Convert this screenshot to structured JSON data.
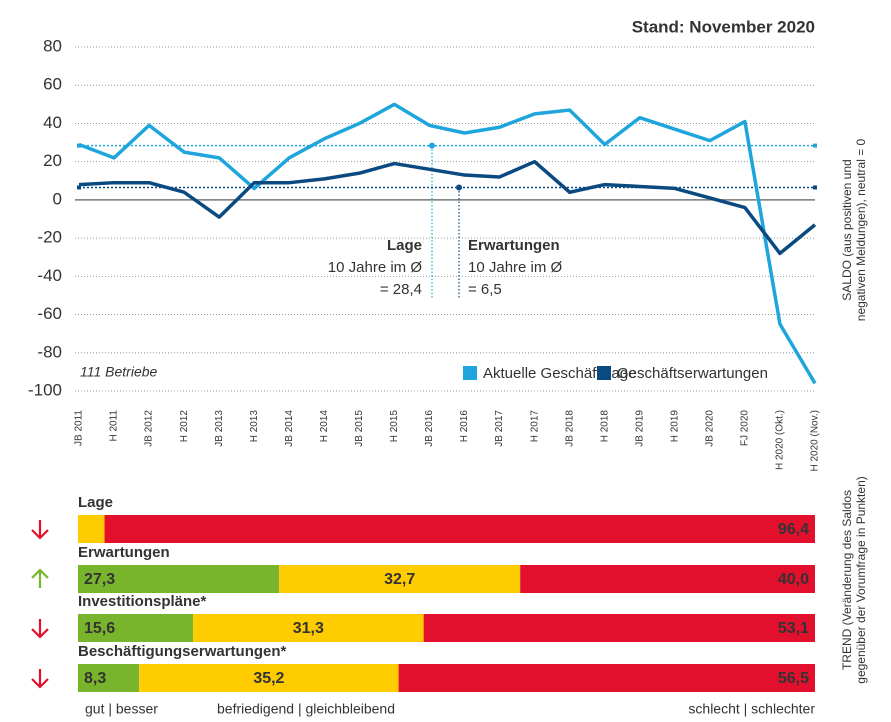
{
  "chart_data": [
    {
      "type": "line",
      "title": "Stand: November 2020",
      "annotation": "111 Betriebe",
      "y_label": [
        "SALDO (aus positiven und",
        "negativen Meldungen), neutral = 0"
      ],
      "categories": [
        "JB 2011",
        "H 2011",
        "JB 2012",
        "H 2012",
        "JB 2013",
        "H 2013",
        "JB 2014",
        "H 2014",
        "JB 2015",
        "H 2015",
        "JB 2016",
        "H 2016",
        "JB 2017",
        "H 2017",
        "JB 2018",
        "H 2018",
        "JB 2019",
        "H 2019",
        "JB 2020",
        "FJ 2020",
        "H 2020 (Okt.)",
        "H 2020 (Nov.)"
      ],
      "series": [
        {
          "name": "Aktuelle Geschäftslage",
          "color": "#1ea6dc",
          "values": [
            29,
            22,
            39,
            25,
            22,
            6,
            22,
            32,
            40,
            50,
            39,
            35,
            38,
            45,
            47,
            29,
            43,
            37,
            31,
            41,
            -65,
            -96
          ]
        },
        {
          "name": "Geschäftserwartungen",
          "color": "#0b4a80",
          "values": [
            8,
            9,
            9,
            4,
            -9,
            9,
            9,
            11,
            14,
            19,
            16,
            13,
            12,
            20,
            4,
            8,
            7,
            6,
            1,
            -4,
            -28,
            -13
          ]
        }
      ],
      "reference_lines": [
        {
          "title": "Lage",
          "text": "10 Jahre im Ø",
          "value": 28.4,
          "value_label": "= 28,4",
          "color": "#1ea6dc"
        },
        {
          "title": "Erwartungen",
          "text": "10 Jahre im Ø",
          "value": 6.5,
          "value_label": "= 6,5",
          "color": "#0b4a80"
        }
      ],
      "ylim": [
        -100,
        80
      ],
      "yticks": [
        80,
        60,
        40,
        20,
        0,
        -20,
        -40,
        -60,
        -80,
        -100
      ],
      "grid": true,
      "legend": "bottom-right"
    },
    {
      "type": "stacked-bar",
      "orientation": "horizontal",
      "y_label": [
        "TREND (Veränderung des Saldos",
        "gegenüber der Vorumfrage in Punkten)"
      ],
      "categories": [
        "Lage",
        "Erwartungen",
        "Investitionspläne*",
        "Beschäftigungserwartungen*"
      ],
      "trend": [
        "down",
        "up",
        "down",
        "down"
      ],
      "xlim": [
        0,
        100
      ],
      "series": [
        {
          "name": "gut | besser",
          "color": "#78b52c",
          "values": [
            null,
            27.3,
            15.6,
            8.3
          ],
          "value_labels": [
            null,
            "27,3",
            "15,6",
            "8,3"
          ]
        },
        {
          "name": "befriedigend | gleichbleibend",
          "color": "#ffcc00",
          "values": [
            3.6,
            32.7,
            31.3,
            35.2
          ],
          "value_labels": [
            "3,6",
            "32,7",
            "31,3",
            "35,2"
          ]
        },
        {
          "name": "schlecht | schlechter",
          "color": "#e3102d",
          "values": [
            96.4,
            40.0,
            53.1,
            56.5
          ],
          "value_labels": [
            "96,4",
            "40,0",
            "53,1",
            "56,5"
          ]
        }
      ]
    }
  ]
}
